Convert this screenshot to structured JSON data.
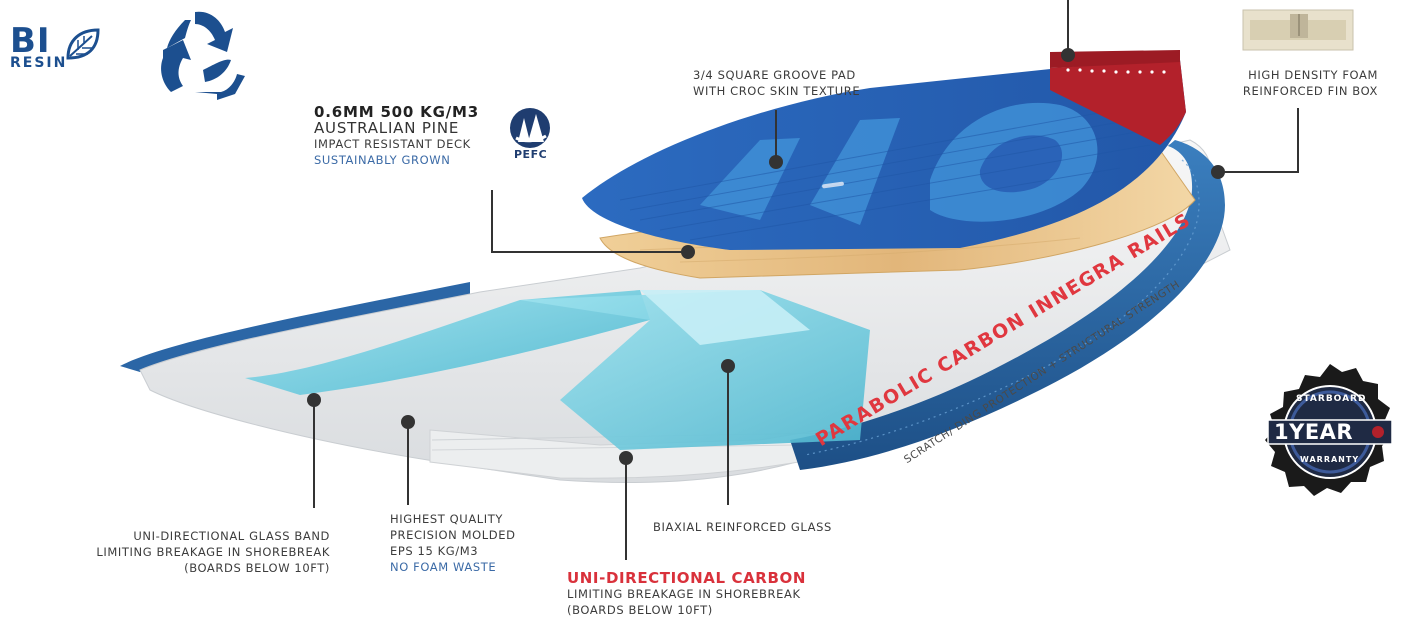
{
  "logos": {
    "bio_resin": {
      "line1": "BI",
      "line2": "RESIN",
      "color": "#1c4f8f"
    },
    "recycle": {
      "icon": "recycle-leaves-icon",
      "color": "#1c4f8f"
    },
    "pefc": {
      "text": "PEFC",
      "icon": "pefc-trees-icon"
    },
    "warranty": {
      "top": "STARBOARD",
      "main": "1YEAR",
      "bottom": "WARRANTY"
    }
  },
  "labels": {
    "groove_pad": {
      "line1": "3/4 SQUARE GROOVE PAD",
      "line2": "WITH CROC SKIN TEXTURE"
    },
    "fin_box": {
      "line1": "HIGH DENSITY FOAM",
      "line2": "REINFORCED FIN BOX"
    },
    "deck": {
      "line1": "0.6MM 500 KG/M3",
      "line2": "AUSTRALIAN PINE",
      "line3": "IMPACT RESISTANT DECK",
      "line4": "SUSTAINABLY GROWN"
    },
    "glass_band": {
      "line1": "UNI-DIRECTIONAL GLASS BAND",
      "line2": "LIMITING BREAKAGE IN SHOREBREAK",
      "line3": "(BOARDS BELOW 10FT)"
    },
    "eps": {
      "line1": "HIGHEST QUALITY",
      "line2": "PRECISION MOLDED",
      "line3": "EPS 15 KG/M3",
      "line4": "NO FOAM WASTE"
    },
    "carbon": {
      "line1": "UNI-DIRECTIONAL CARBON",
      "line2": "LIMITING BREAKAGE IN SHOREBREAK",
      "line3": "(BOARDS BELOW 10FT)"
    },
    "biaxial": {
      "line1": "BIAXIAL REINFORCED GLASS"
    },
    "rail": {
      "title": "PARABOLIC CARBON INNEGRA RAILS",
      "sub": "SCRATCH/ DING PROTECTION + STRUCTURAL STRENGTH"
    }
  },
  "colors": {
    "deck_blue": "#2a63b8",
    "deck_light_blue": "#3f8fd6",
    "tail_red": "#b3212b",
    "wood": "#e7c48b",
    "rail_blue": "#2a6aa8",
    "teal": "#7fd0e2",
    "accent_red": "#d9313b"
  }
}
